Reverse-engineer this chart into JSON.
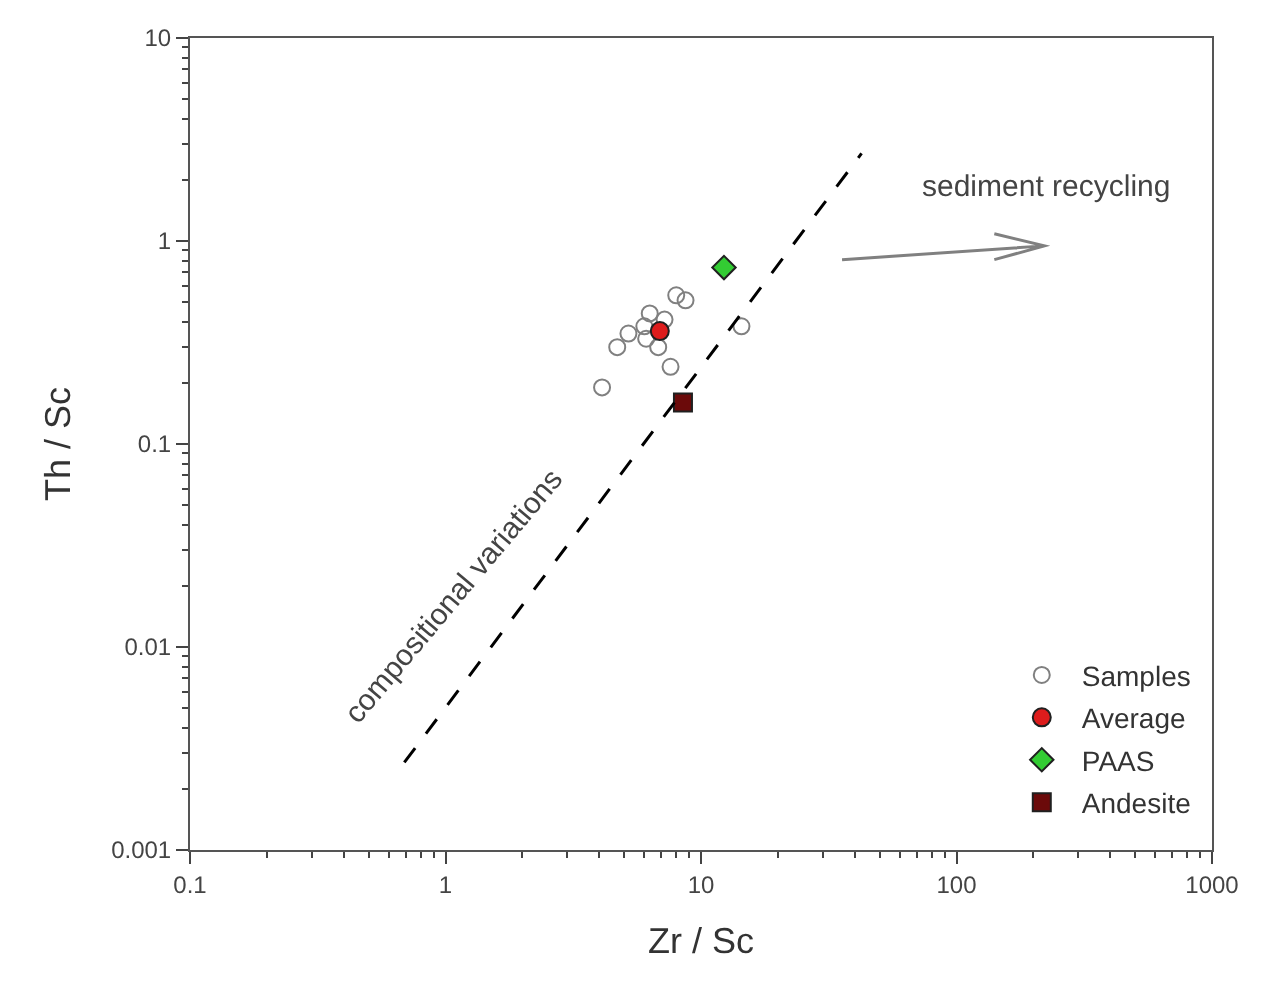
{
  "chart_data": {
    "type": "scatter",
    "xlabel": "Zr / Sc",
    "ylabel": "Th / Sc",
    "log": "xy",
    "legend": "bottom right",
    "xlim": [
      0.1,
      1000
    ],
    "xticks": [
      0.1,
      1,
      10,
      100,
      1000
    ],
    "ylim": [
      0.001,
      10
    ],
    "yticks": [
      0.001,
      0.01,
      0.1,
      1,
      10
    ],
    "series": [
      {
        "name": "Samples",
        "color": "#808080",
        "marker": "circle",
        "x": [
          4.1,
          4.7,
          5.2,
          6.0,
          6.1,
          6.3,
          6.8,
          7.2,
          7.6,
          8.0,
          8.7,
          14.4
        ],
        "values": [
          0.19,
          0.3,
          0.35,
          0.38,
          0.33,
          0.44,
          0.3,
          0.41,
          0.24,
          0.54,
          0.51,
          0.38
        ]
      },
      {
        "name": "Average",
        "color": "#dd1c1c",
        "marker": "circle",
        "x": [
          6.9
        ],
        "values": [
          0.36
        ]
      },
      {
        "name": "PAAS",
        "color": "#33cc33",
        "marker": "diamond",
        "x": [
          12.3
        ],
        "values": [
          0.74
        ]
      },
      {
        "name": "Andesite",
        "color": "#6b0a0a",
        "marker": "square",
        "x": [
          8.5
        ],
        "values": [
          0.16
        ]
      },
      {
        "type": "line",
        "color": "#000000",
        "line_style": "dashed",
        "marker": "none",
        "x": [
          0.69,
          42.5
        ],
        "values": [
          0.0027,
          2.7
        ]
      }
    ],
    "annotations": [
      "sediment recycling",
      "compositional variations"
    ]
  }
}
